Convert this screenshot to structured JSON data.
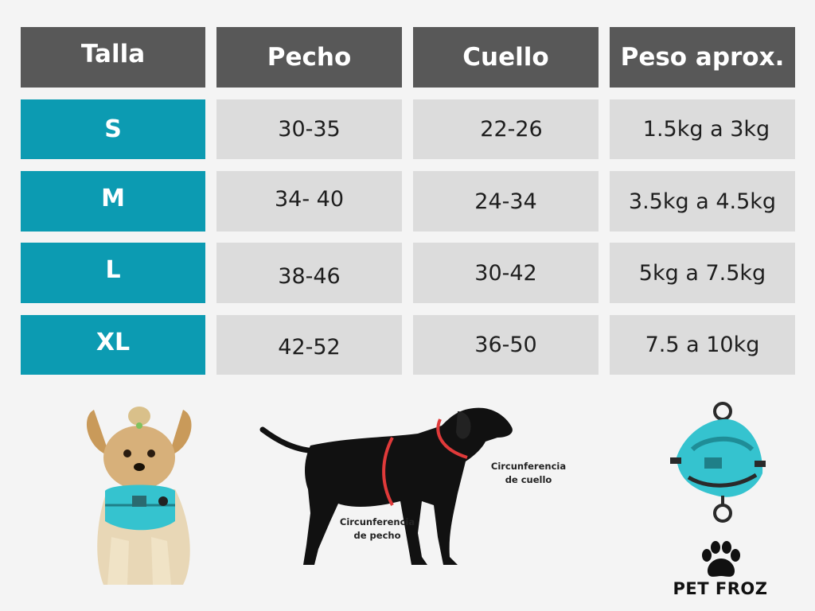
{
  "table": {
    "headers": [
      "Talla",
      "Pecho",
      "Cuello",
      "Peso aprox."
    ],
    "rows": [
      {
        "talla": "S",
        "pecho": "30-35",
        "cuello": "22-26",
        "peso": "1.5kg a 3kg"
      },
      {
        "talla": "M",
        "pecho": "34- 40",
        "cuello": "24-34",
        "peso": "3.5kg a 4.5kg"
      },
      {
        "talla": "L",
        "pecho": "38-46",
        "cuello": "30-42",
        "peso": "5kg a 7.5kg"
      },
      {
        "talla": "XL",
        "pecho": "42-52",
        "cuello": "36-50",
        "peso": "7.5 a 10kg"
      }
    ]
  },
  "diagram": {
    "neck_label_line1": "Circunferencia",
    "neck_label_line2": "de cuello",
    "chest_label_line1": "Circunferencia",
    "chest_label_line2": "de pecho"
  },
  "brand": {
    "name": "PET FROZ",
    "icon": "paw-icon"
  },
  "colors": {
    "header_bg": "#585858",
    "size_bg": "#0c9bb2",
    "value_bg": "#dcdcdc",
    "measure_line": "#e03a3a",
    "harness": "#35c3cf"
  }
}
